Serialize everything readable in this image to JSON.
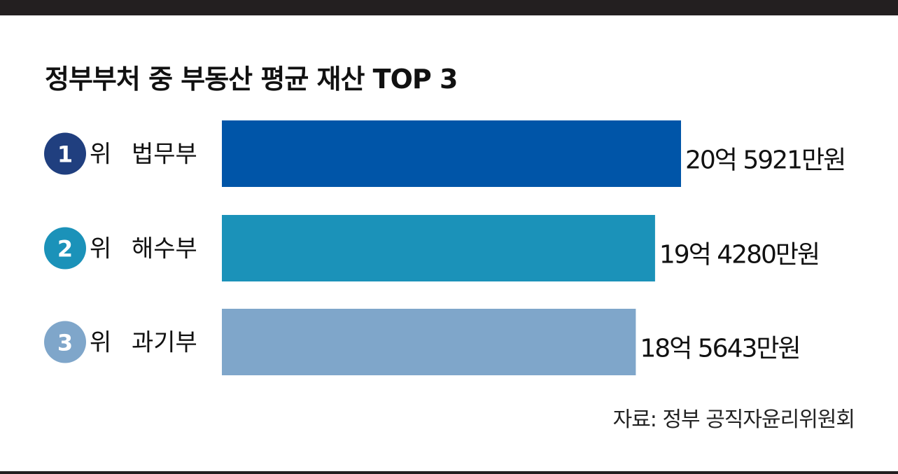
{
  "title": "정부부처 중 부동산 평균 재산 TOP 3",
  "source": "자료: 정부 공직자윤리위원회",
  "rank_suffix": "위",
  "colors": {
    "rank1": "#0055a8",
    "rank2": "#1b92b9",
    "rank3": "#7fa6ca",
    "badge1": "#203f7f",
    "badge2": "#1b92b9",
    "badge3": "#7fa6ca",
    "frame": "#231f20"
  },
  "chart_data": {
    "type": "bar",
    "orientation": "horizontal",
    "title": "정부부처 중 부동산 평균 재산 TOP 3",
    "unit": "만원",
    "categories": [
      "법무부",
      "해수부",
      "과기부"
    ],
    "ranks": [
      "1",
      "2",
      "3"
    ],
    "values": [
      205921,
      194280,
      185643
    ],
    "value_labels": [
      "20억 5921만원",
      "19억 4280만원",
      "18억 5643만원"
    ],
    "xlim": [
      0,
      205921
    ],
    "grid": false,
    "legend": "none"
  }
}
